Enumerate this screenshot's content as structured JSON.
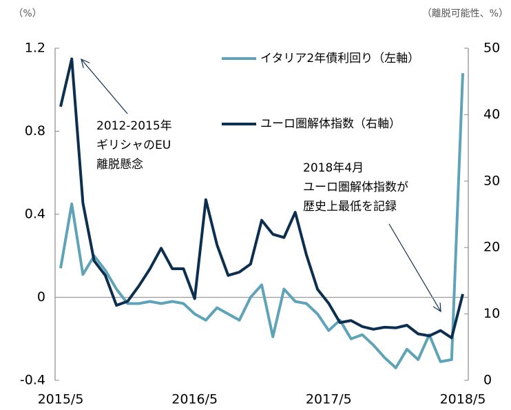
{
  "chart_data": {
    "type": "line",
    "y_label": "（%）",
    "y2_label": "（離脱可能性、%）",
    "categories": [
      "2015/5",
      null,
      null,
      null,
      null,
      null,
      null,
      null,
      null,
      null,
      null,
      null,
      "2016/5",
      null,
      null,
      null,
      null,
      null,
      null,
      null,
      null,
      null,
      null,
      null,
      "2017/5",
      null,
      null,
      null,
      null,
      null,
      null,
      null,
      null,
      null,
      null,
      null,
      "2018/5"
    ],
    "series": [
      {
        "name": "イタリア2年債利回り（左軸）",
        "color": "#5fa3b8",
        "axis": "y",
        "values": [
          0.14,
          0.45,
          0.11,
          0.2,
          0.13,
          0.04,
          -0.03,
          -0.03,
          -0.02,
          -0.03,
          -0.02,
          -0.03,
          -0.08,
          -0.11,
          -0.05,
          -0.08,
          -0.11,
          0,
          0.06,
          -0.19,
          0.04,
          -0.02,
          -0.03,
          -0.08,
          -0.16,
          -0.11,
          -0.2,
          -0.18,
          -0.23,
          -0.29,
          -0.34,
          -0.25,
          -0.3,
          -0.18,
          -0.31,
          -0.3,
          1.08
        ]
      },
      {
        "name": "ユーロ圏解体指数（右軸）",
        "color": "#0d2f4f",
        "axis": "y2",
        "values": [
          41.2,
          48.4,
          26.7,
          18,
          15.8,
          11.3,
          11.9,
          14.2,
          16.8,
          19.9,
          16.8,
          16.8,
          12.3,
          27.2,
          20.4,
          15.8,
          16.3,
          17.5,
          24.1,
          22,
          21.5,
          25.3,
          18.9,
          13.7,
          11.6,
          8.7,
          9,
          8.1,
          7.7,
          8,
          7.9,
          8.3,
          7,
          6.7,
          7.5,
          6.4,
          13
        ]
      }
    ],
    "ylim": [
      -0.4,
      1.2
    ],
    "yticks": [
      -0.4,
      0,
      0.4,
      0.8,
      1.2
    ],
    "y2lim": [
      0,
      50
    ],
    "y2ticks": [
      0,
      10,
      20,
      30,
      40,
      50
    ],
    "annotations": [
      {
        "lines": [
          "2012-2015年",
          "ギリシャのEU",
          "離脱懸念"
        ]
      },
      {
        "lines": [
          "2018年4月",
          "ユーロ圏解体指数が",
          "歴史上最低を記録"
        ]
      }
    ]
  }
}
